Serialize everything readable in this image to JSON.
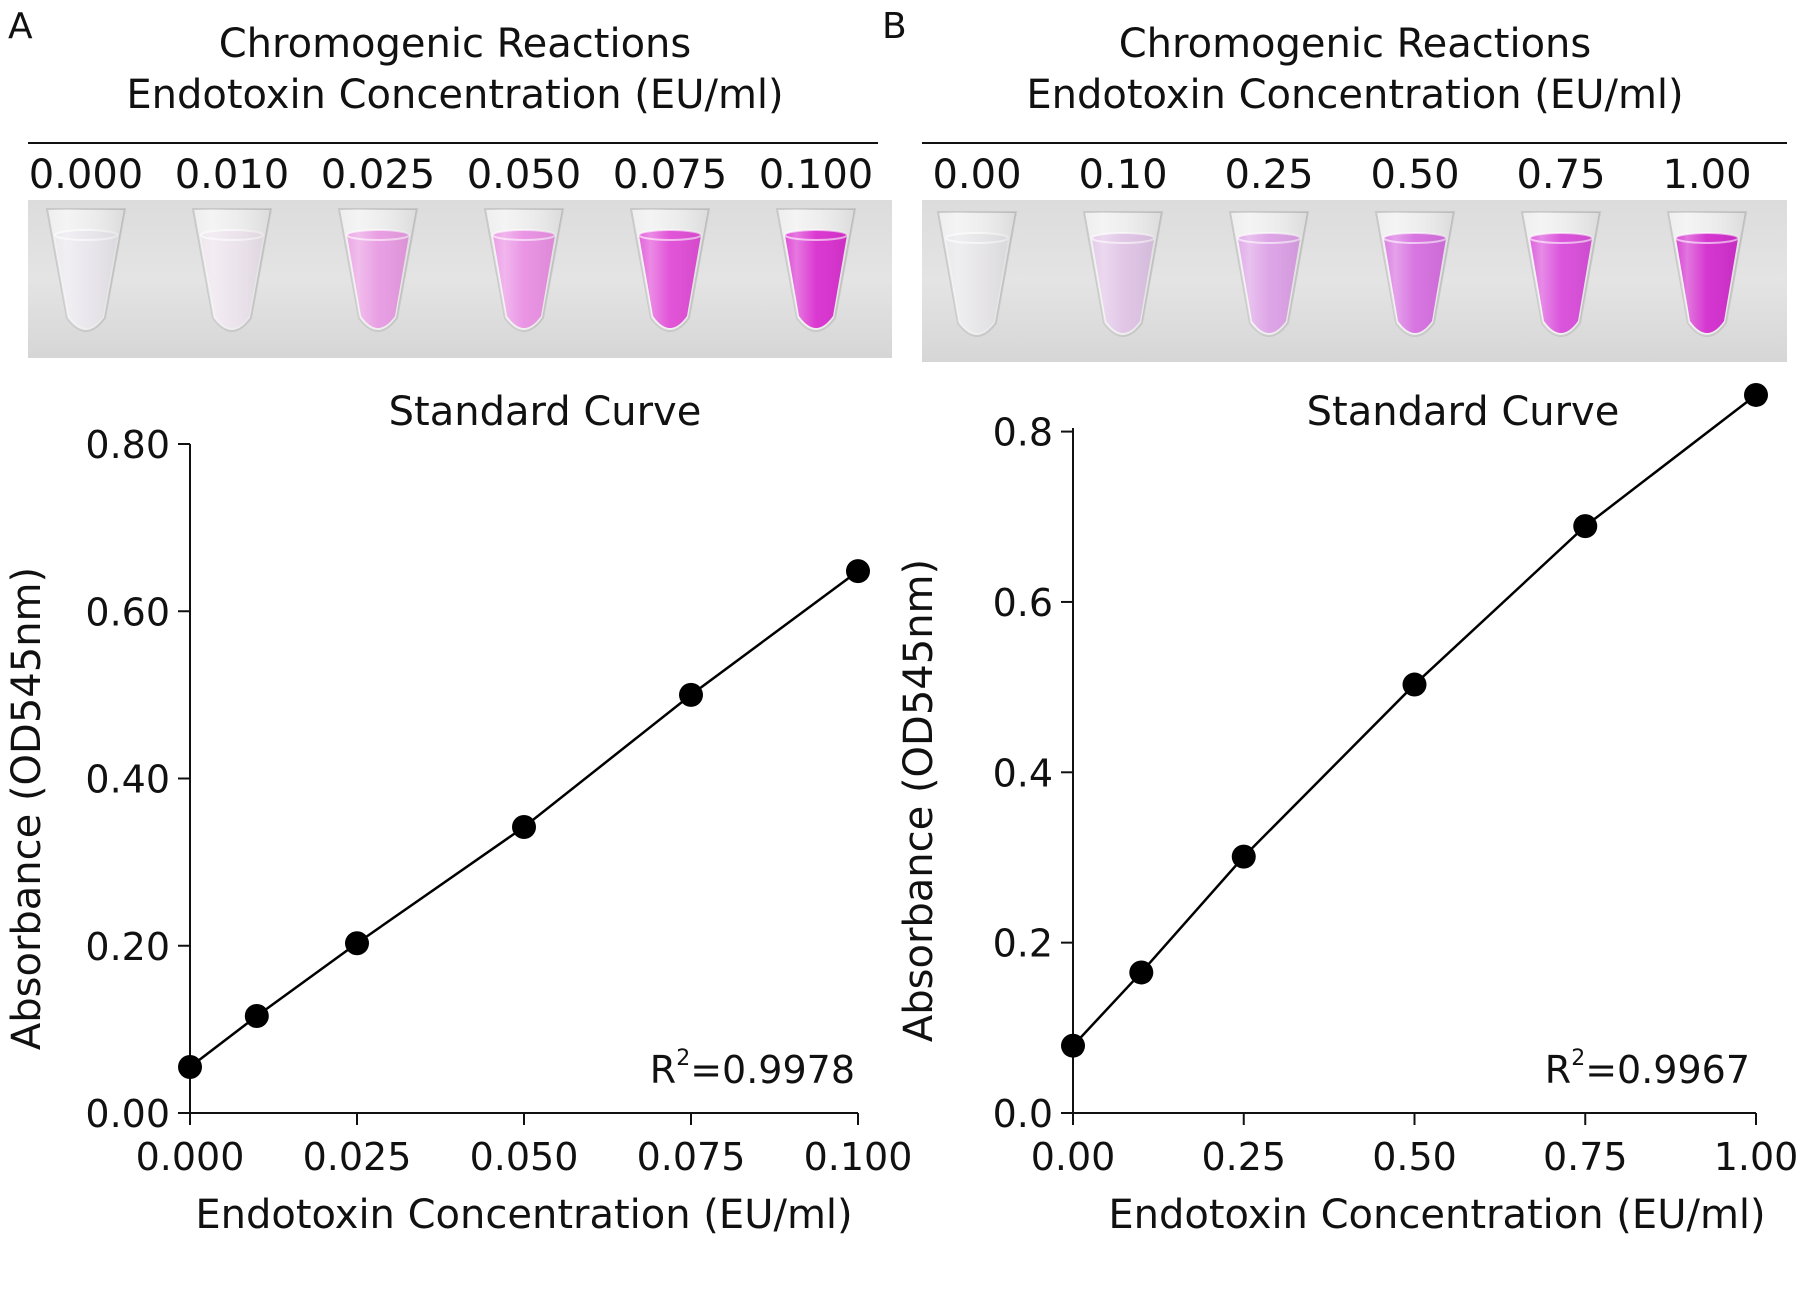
{
  "panels": [
    {
      "label": "A",
      "header_line1": "Chromogenic Reactions",
      "header_line2": "Endotoxin Concentration (EU/ml)",
      "tubes": [
        {
          "label": "0.000",
          "color": "#e9e6ec",
          "intensity": 0.0
        },
        {
          "label": "0.010",
          "color": "#ece3ec",
          "intensity": 0.05
        },
        {
          "label": "0.025",
          "color": "#e89ae2",
          "intensity": 0.45
        },
        {
          "label": "0.050",
          "color": "#e98fe3",
          "intensity": 0.55
        },
        {
          "label": "0.075",
          "color": "#e04bd6",
          "intensity": 0.85
        },
        {
          "label": "0.100",
          "color": "#d92fcf",
          "intensity": 1.0
        }
      ],
      "plot_title": "Standard Curve",
      "r2_prefix": "R",
      "r2_sup": "2",
      "r2_value": "=0.9978"
    },
    {
      "label": "B",
      "header_line1": "Chromogenic Reactions",
      "header_line2": "Endotoxin Concentration (EU/ml)",
      "tubes": [
        {
          "label": "0.00",
          "color": "#e6e5e8",
          "intensity": 0.0
        },
        {
          "label": "0.10",
          "color": "#e0c4e6",
          "intensity": 0.2
        },
        {
          "label": "0.25",
          "color": "#dca0e6",
          "intensity": 0.4
        },
        {
          "label": "0.50",
          "color": "#d66ee0",
          "intensity": 0.65
        },
        {
          "label": "0.75",
          "color": "#d94cda",
          "intensity": 0.85
        },
        {
          "label": "1.00",
          "color": "#d22ccd",
          "intensity": 1.0
        }
      ],
      "plot_title": "Standard Curve",
      "r2_prefix": "R",
      "r2_sup": "2",
      "r2_value": "=0.9967"
    }
  ],
  "chart_data": [
    {
      "type": "line",
      "title": "Standard Curve",
      "xlabel": "Endotoxin Concentration (EU/ml)",
      "ylabel": "Absorbance (OD545nm)",
      "x": [
        0.0,
        0.01,
        0.025,
        0.05,
        0.075,
        0.1
      ],
      "series": [
        {
          "values": [
            0.055,
            0.116,
            0.203,
            0.342,
            0.5,
            0.648
          ]
        }
      ],
      "xlim": [
        0.0,
        0.1
      ],
      "ylim": [
        0.0,
        0.8
      ],
      "xticks": [
        0.0,
        0.025,
        0.05,
        0.075,
        0.1
      ],
      "xtick_labels": [
        "0.000",
        "0.025",
        "0.050",
        "0.075",
        "0.100"
      ],
      "yticks": [
        0.0,
        0.2,
        0.4,
        0.6,
        0.8
      ],
      "ytick_labels": [
        "0.00",
        "0.20",
        "0.40",
        "0.60",
        "0.80"
      ],
      "annotation": "R2=0.9978",
      "grid": false,
      "line_color": "#000000"
    },
    {
      "type": "line",
      "title": "Standard Curve",
      "xlabel": "Endotoxin Concentration (EU/ml)",
      "ylabel": "Absorbance (OD545nm)",
      "x": [
        0.0,
        0.1,
        0.25,
        0.5,
        0.75,
        1.0
      ],
      "series": [
        {
          "values": [
            0.079,
            0.165,
            0.301,
            0.503,
            0.689,
            0.843
          ]
        }
      ],
      "xlim": [
        0.0,
        1.0
      ],
      "ylim": [
        0.0,
        0.85
      ],
      "xticks": [
        0.0,
        0.25,
        0.5,
        0.75,
        1.0
      ],
      "xtick_labels": [
        "0.00",
        "0.25",
        "0.50",
        "0.75",
        "1.00"
      ],
      "yticks": [
        0.0,
        0.2,
        0.4,
        0.6,
        0.8
      ],
      "ytick_labels": [
        "0.0",
        "0.2",
        "0.4",
        "0.6",
        "0.8"
      ],
      "annotation": "R2=0.9967",
      "grid": false,
      "line_color": "#000000"
    }
  ]
}
